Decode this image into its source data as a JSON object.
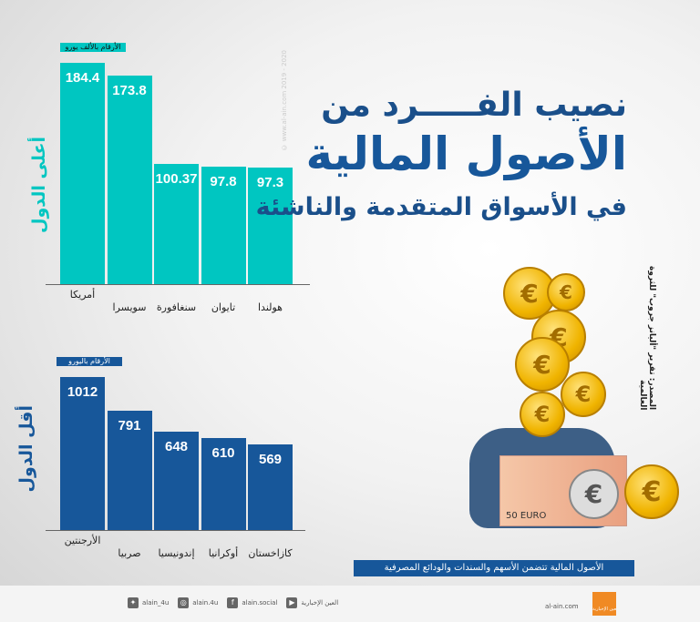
{
  "title": {
    "line1": "نصيب الفـــــرد من",
    "line2": "الأصول المالية",
    "line3": "في الأسواق المتقدمة والناشئة"
  },
  "watermark": "© www.al-ain.com 2019 - 2020",
  "source": "المصدر: تقرير \"أليانز جروب\" للثروة العالمية",
  "note": "الأصول المالية تتضمن الأسهم والسندات والودائع المصرفية",
  "colors": {
    "top": "#00c6c1",
    "bottom": "#17579a",
    "title": "#1a4f8a"
  },
  "chart_data": [
    {
      "type": "bar",
      "title": "أعلى الدول",
      "unit_label": "الأرقام بالألف يورو",
      "categories": [
        "أمريكا",
        "سويسرا",
        "سنغافورة",
        "تايوان",
        "هولندا"
      ],
      "values": [
        184.4,
        173.8,
        100.37,
        97.8,
        97.3
      ],
      "labels": [
        "184.4",
        "173.8",
        "100.37",
        "97.8",
        "97.3"
      ]
    },
    {
      "type": "bar",
      "title": "أقل الدول",
      "unit_label": "الأرقام باليورو",
      "categories": [
        "الأرجنتين",
        "صربيا",
        "إندونيسيا",
        "أوكرانيا",
        "كازاخستان"
      ],
      "values": [
        1012,
        791,
        648,
        610,
        569
      ],
      "labels": [
        "1012",
        "791",
        "648",
        "610",
        "569"
      ]
    }
  ],
  "footer": {
    "site": "al-ain.com",
    "logo": "العين الإخبارية",
    "social": [
      {
        "icon": "youtube-icon",
        "label": "العين الإخبارية"
      },
      {
        "icon": "facebook-icon",
        "label": "alain.social"
      },
      {
        "icon": "instagram-icon",
        "label": "alain.4u"
      },
      {
        "icon": "twitter-icon",
        "label": "alain_4u"
      }
    ]
  }
}
